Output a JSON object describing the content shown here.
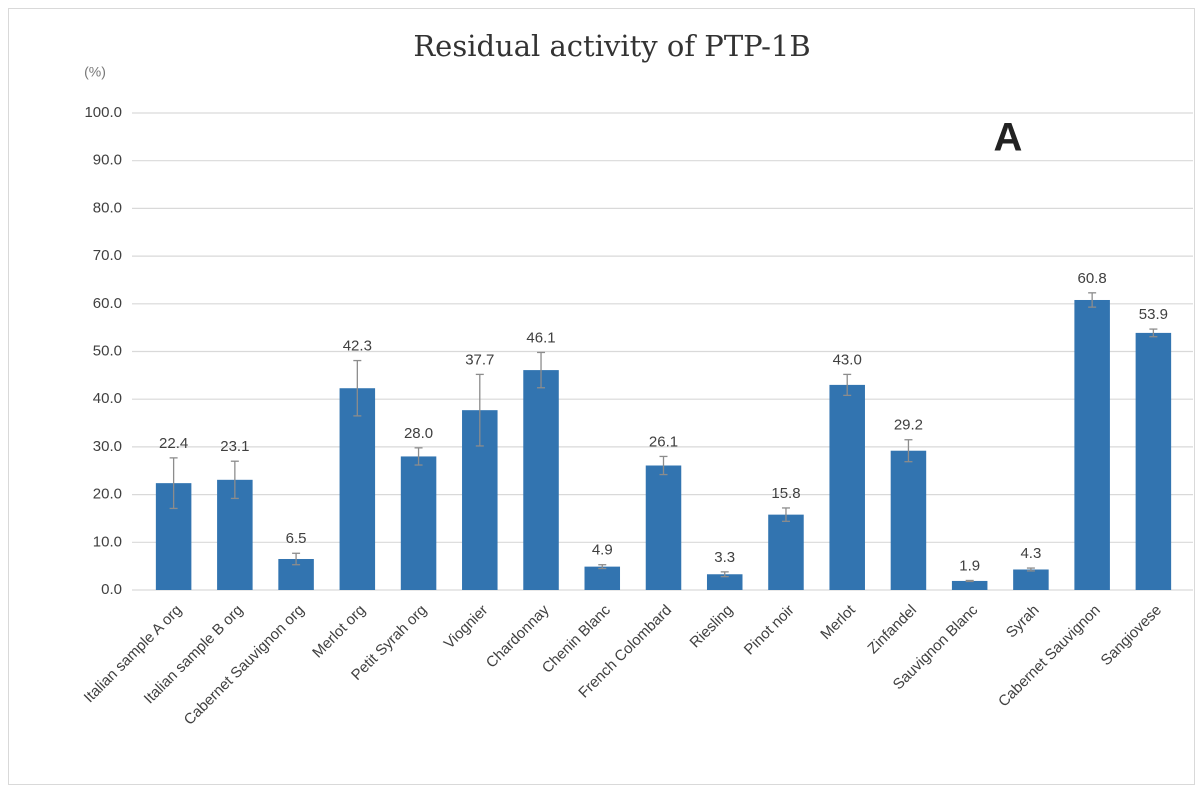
{
  "chart_data": {
    "type": "bar",
    "title": "Residual activity of PTP-1B",
    "y_unit_label": "(%)",
    "annotation": "A",
    "categories": [
      "Italian sample A org",
      "Italian sample B org",
      "Cabernet Sauvignon org",
      "Merlot org",
      "Petit Syrah org",
      "Viognier",
      "Chardonnay",
      "Chenin Blanc",
      "French Colombard",
      "Riesling",
      "Pinot noir",
      "Merlot",
      "Zinfandel",
      "Sauvignon Blanc",
      "Syrah",
      "Cabernet Sauvignon",
      "Sangiovese"
    ],
    "values": [
      22.4,
      23.1,
      6.5,
      42.3,
      28.0,
      37.7,
      46.1,
      4.9,
      26.1,
      3.3,
      15.8,
      43.0,
      29.2,
      1.9,
      4.3,
      60.8,
      53.9
    ],
    "value_labels": [
      "22.4",
      "23.1",
      "6.5",
      "42.3",
      "28.0",
      "37.7",
      "46.1",
      "4.9",
      "26.1",
      "3.3",
      "15.8",
      "43.0",
      "29.2",
      "1.9",
      "4.3",
      "60.8",
      "53.9"
    ],
    "errors": [
      5.3,
      3.9,
      1.2,
      5.8,
      1.8,
      7.5,
      3.7,
      0.4,
      1.9,
      0.5,
      1.4,
      2.2,
      2.3,
      0.1,
      0.3,
      1.5,
      0.8
    ],
    "color": "#3274b0",
    "error_color": "#8c8c8c",
    "ylim": [
      0,
      100
    ],
    "yticks": [
      {
        "value": 0,
        "label": "0.0"
      },
      {
        "value": 10,
        "label": "10.0"
      },
      {
        "value": 20,
        "label": "20.0"
      },
      {
        "value": 30,
        "label": "30.0"
      },
      {
        "value": 40,
        "label": "40.0"
      },
      {
        "value": 50,
        "label": "50.0"
      },
      {
        "value": 60,
        "label": "60.0"
      },
      {
        "value": 70,
        "label": "70.0"
      },
      {
        "value": 80,
        "label": "80.0"
      },
      {
        "value": 90,
        "label": "90.0"
      },
      {
        "value": 100,
        "label": "100.0"
      }
    ],
    "grid": true
  }
}
